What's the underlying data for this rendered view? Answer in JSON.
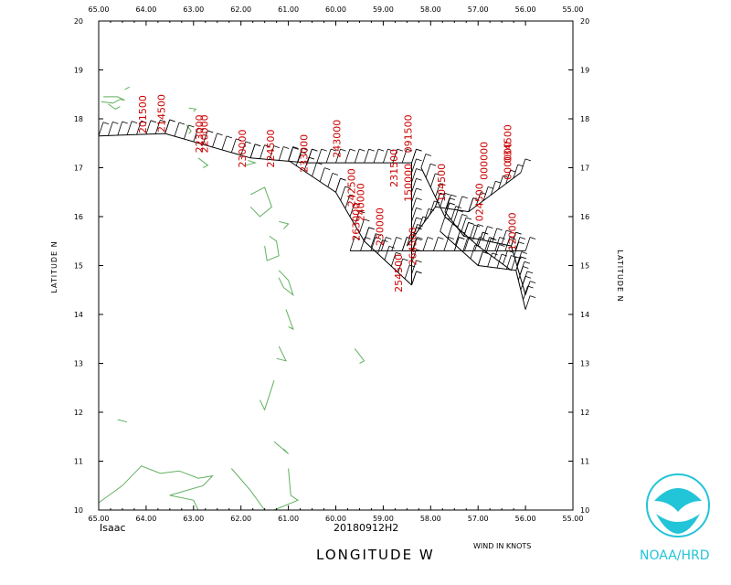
{
  "chart_data": {
    "type": "scatter",
    "storm": "Isaac",
    "datetime": "20180912H2",
    "xlabel": "LONGITUDE  W",
    "ylabel": "LATITUDE  N",
    "wind_units": "WIND IN KNOTS",
    "xlim": [
      65,
      55
    ],
    "ylim": [
      10,
      20
    ],
    "x_ticks": [
      "65.00",
      "64.00",
      "63.00",
      "62.00",
      "61.00",
      "60.00",
      "59.00",
      "58.00",
      "57.00",
      "56.00",
      "55.00"
    ],
    "y_ticks": [
      "10",
      "11",
      "12",
      "13",
      "14",
      "15",
      "16",
      "17",
      "18",
      "19",
      "20"
    ],
    "colors": {
      "track": "#000000",
      "land": "#60b060",
      "label": "#cc0000",
      "logo": "#22c4d8"
    },
    "tracks": [
      [
        [
          65.0,
          17.65
        ],
        [
          63.6,
          17.7
        ],
        [
          61.8,
          17.2
        ],
        [
          60.6,
          17.1
        ],
        [
          58.4,
          17.1
        ]
      ],
      [
        [
          58.4,
          17.1
        ],
        [
          58.4,
          15.5
        ],
        [
          58.4,
          14.6
        ]
      ],
      [
        [
          61.0,
          17.15
        ],
        [
          60.0,
          16.5
        ],
        [
          59.4,
          15.5
        ],
        [
          58.4,
          14.6
        ]
      ],
      [
        [
          59.7,
          15.3
        ],
        [
          58.6,
          15.3
        ],
        [
          57.5,
          15.3
        ],
        [
          56.0,
          15.3
        ]
      ],
      [
        [
          57.7,
          16.1
        ],
        [
          57.3,
          15.6
        ],
        [
          56.3,
          15.4
        ],
        [
          56.0,
          14.4
        ]
      ],
      [
        [
          58.5,
          15.4
        ],
        [
          57.9,
          16.2
        ],
        [
          57.2,
          16.1
        ],
        [
          56.1,
          16.9
        ]
      ],
      [
        [
          58.2,
          17.0
        ],
        [
          57.7,
          16.0
        ],
        [
          57.0,
          15.4
        ],
        [
          56.3,
          14.9
        ]
      ],
      [
        [
          57.8,
          15.7
        ],
        [
          57.0,
          15.0
        ],
        [
          56.2,
          14.9
        ],
        [
          56.0,
          14.1
        ]
      ]
    ],
    "labels": [
      {
        "text": "201500",
        "lon": 64.0,
        "lat": 17.7
      },
      {
        "text": "214500",
        "lon": 63.6,
        "lat": 17.72
      },
      {
        "text": "220000",
        "lon": 62.7,
        "lat": 17.3
      },
      {
        "text": "223000",
        "lon": 62.8,
        "lat": 17.3
      },
      {
        "text": "230000",
        "lon": 61.9,
        "lat": 17.0
      },
      {
        "text": "224500",
        "lon": 61.3,
        "lat": 17.0
      },
      {
        "text": "233000",
        "lon": 60.6,
        "lat": 16.9
      },
      {
        "text": "240000",
        "lon": 59.4,
        "lat": 15.9
      },
      {
        "text": "263000",
        "lon": 59.5,
        "lat": 15.5
      },
      {
        "text": "242500",
        "lon": 59.6,
        "lat": 16.2
      },
      {
        "text": "243000",
        "lon": 59.9,
        "lat": 17.2
      },
      {
        "text": "091500",
        "lon": 58.4,
        "lat": 17.3
      },
      {
        "text": "231500",
        "lon": 58.7,
        "lat": 16.6
      },
      {
        "text": "150000",
        "lon": 58.4,
        "lat": 16.3
      },
      {
        "text": "254500",
        "lon": 58.6,
        "lat": 14.45
      },
      {
        "text": "250000",
        "lon": 59.0,
        "lat": 15.4
      },
      {
        "text": "264500",
        "lon": 58.3,
        "lat": 15.0
      },
      {
        "text": "104500",
        "lon": 57.7,
        "lat": 16.3
      },
      {
        "text": "000000",
        "lon": 56.3,
        "lat": 16.75
      },
      {
        "text": "000000",
        "lon": 56.8,
        "lat": 16.75
      },
      {
        "text": "034500",
        "lon": 56.3,
        "lat": 17.1
      },
      {
        "text": "024500",
        "lon": 56.9,
        "lat": 15.9
      },
      {
        "text": "120000",
        "lon": 56.2,
        "lat": 15.3
      }
    ],
    "land": [
      [
        [
          64.95,
          18.35
        ],
        [
          64.7,
          18.32
        ],
        [
          64.55,
          18.4
        ],
        [
          64.45,
          18.38
        ],
        [
          64.6,
          18.45
        ],
        [
          64.9,
          18.45
        ]
      ],
      [
        [
          64.8,
          18.3
        ],
        [
          64.65,
          18.2
        ],
        [
          64.55,
          18.25
        ]
      ],
      [
        [
          64.45,
          18.6
        ],
        [
          64.35,
          18.65
        ]
      ],
      [
        [
          63.1,
          18.22
        ],
        [
          62.95,
          18.2
        ],
        [
          63.0,
          18.15
        ]
      ],
      [
        [
          63.15,
          17.88
        ],
        [
          63.05,
          17.75
        ],
        [
          63.1,
          17.7
        ]
      ],
      [
        [
          62.9,
          17.2
        ],
        [
          62.7,
          17.05
        ],
        [
          62.8,
          17.0
        ]
      ],
      [
        [
          61.85,
          17.15
        ],
        [
          61.7,
          17.1
        ],
        [
          61.9,
          17.05
        ]
      ],
      [
        [
          61.8,
          16.45
        ],
        [
          61.5,
          16.6
        ],
        [
          61.35,
          16.2
        ],
        [
          61.6,
          16.0
        ],
        [
          61.8,
          16.2
        ]
      ],
      [
        [
          61.2,
          15.9
        ],
        [
          61.0,
          15.85
        ],
        [
          61.1,
          15.75
        ]
      ],
      [
        [
          61.4,
          15.6
        ],
        [
          61.25,
          15.5
        ],
        [
          61.2,
          15.2
        ],
        [
          61.45,
          15.1
        ],
        [
          61.5,
          15.4
        ]
      ],
      [
        [
          61.2,
          14.9
        ],
        [
          61.0,
          14.7
        ],
        [
          60.9,
          14.4
        ],
        [
          61.1,
          14.55
        ],
        [
          61.2,
          14.75
        ]
      ],
      [
        [
          61.05,
          14.1
        ],
        [
          60.9,
          13.7
        ],
        [
          61.0,
          13.75
        ]
      ],
      [
        [
          61.2,
          13.35
        ],
        [
          61.05,
          13.05
        ],
        [
          61.25,
          13.1
        ]
      ],
      [
        [
          59.6,
          13.3
        ],
        [
          59.4,
          13.05
        ],
        [
          59.5,
          13.0
        ]
      ],
      [
        [
          61.3,
          12.65
        ],
        [
          61.5,
          12.05
        ],
        [
          61.6,
          12.25
        ]
      ],
      [
        [
          61.3,
          11.4
        ],
        [
          61.0,
          11.15
        ],
        [
          61.1,
          11.25
        ]
      ],
      [
        [
          64.6,
          11.85
        ],
        [
          64.4,
          11.8
        ]
      ],
      [
        [
          65.0,
          10.15
        ],
        [
          64.5,
          10.5
        ],
        [
          64.1,
          10.9
        ],
        [
          63.7,
          10.75
        ],
        [
          63.3,
          10.8
        ],
        [
          62.9,
          10.65
        ],
        [
          62.6,
          10.7
        ],
        [
          62.8,
          10.5
        ],
        [
          63.5,
          10.3
        ],
        [
          63.0,
          10.2
        ],
        [
          62.9,
          10.0
        ]
      ],
      [
        [
          62.2,
          10.85
        ],
        [
          61.8,
          10.4
        ],
        [
          61.5,
          10.0
        ]
      ],
      [
        [
          61.0,
          10.85
        ],
        [
          60.95,
          10.3
        ],
        [
          60.8,
          10.2
        ],
        [
          61.3,
          10.0
        ]
      ]
    ],
    "credit": "NOAA/HRD"
  }
}
